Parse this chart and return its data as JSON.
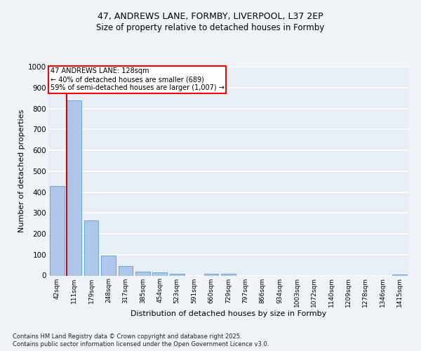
{
  "title_line1": "47, ANDREWS LANE, FORMBY, LIVERPOOL, L37 2EP",
  "title_line2": "Size of property relative to detached houses in Formby",
  "xlabel": "Distribution of detached houses by size in Formby",
  "ylabel": "Number of detached properties",
  "bins": [
    "42sqm",
    "111sqm",
    "179sqm",
    "248sqm",
    "317sqm",
    "385sqm",
    "454sqm",
    "523sqm",
    "591sqm",
    "660sqm",
    "729sqm",
    "797sqm",
    "866sqm",
    "934sqm",
    "1003sqm",
    "1072sqm",
    "1140sqm",
    "1209sqm",
    "1278sqm",
    "1346sqm",
    "1415sqm"
  ],
  "bar_values": [
    430,
    840,
    265,
    95,
    45,
    20,
    15,
    8,
    0,
    8,
    8,
    0,
    0,
    0,
    0,
    0,
    0,
    0,
    0,
    0,
    5
  ],
  "bar_color": "#aec6e8",
  "bar_edge_color": "#5b9bd5",
  "annotation_line1": "47 ANDREWS LANE: 128sqm",
  "annotation_line2": "← 40% of detached houses are smaller (689)",
  "annotation_line3": "59% of semi-detached houses are larger (1,007) →",
  "vline_color": "#cc0000",
  "ylim": [
    0,
    1000
  ],
  "yticks": [
    0,
    100,
    200,
    300,
    400,
    500,
    600,
    700,
    800,
    900,
    1000
  ],
  "footer_line1": "Contains HM Land Registry data © Crown copyright and database right 2025.",
  "footer_line2": "Contains public sector information licensed under the Open Government Licence v3.0.",
  "bg_color": "#e8eef5",
  "grid_color": "#ffffff",
  "fig_bg_color": "#f0f4f8"
}
